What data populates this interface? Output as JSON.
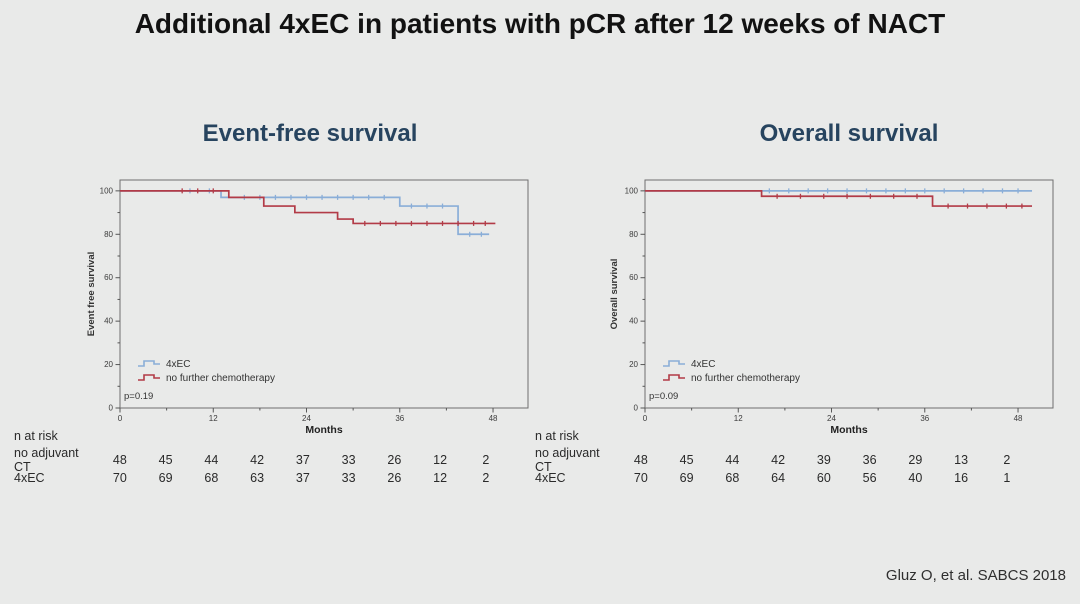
{
  "slide": {
    "title": "Additional 4xEC in patients with pCR after 12 weeks of NACT",
    "citation": "Gluz O, et al. SABCS 2018"
  },
  "colors": {
    "ec_blue": "#8aaed8",
    "no_ct_red": "#b23b47",
    "chart_title_navy": "#27445f",
    "background": "#e9eae9",
    "frame_gray": "#6f6f6f"
  },
  "chart_data": [
    {
      "type": "line",
      "subtype": "kaplan-meier-step",
      "title": "Event-free survival",
      "xlabel": "Months",
      "ylabel": "Event free survival",
      "annotation": "p=0.19",
      "legend_position": "lower left",
      "grid": false,
      "xlim": [
        0,
        52.5
      ],
      "ylim": [
        0,
        105
      ],
      "xticks": [
        0,
        12,
        24,
        36,
        48
      ],
      "yticks": [
        0,
        20,
        40,
        60,
        80,
        100
      ],
      "xticks_minor": [
        6,
        18,
        30,
        42
      ],
      "yticks_minor": [
        10,
        30,
        50,
        70,
        90
      ],
      "series": [
        {
          "name": "4xEC",
          "color": "#8aaed8",
          "step_points": [
            [
              0,
              100
            ],
            [
              13,
              100
            ],
            [
              13,
              97
            ],
            [
              36,
              97
            ],
            [
              36,
              93
            ],
            [
              43.5,
              93
            ],
            [
              43.5,
              80
            ],
            [
              47.5,
              80
            ]
          ],
          "censor_points": [
            [
              9,
              100
            ],
            [
              11.5,
              100
            ],
            [
              16,
              97
            ],
            [
              18,
              97
            ],
            [
              20,
              97
            ],
            [
              22,
              97
            ],
            [
              24,
              97
            ],
            [
              26,
              97
            ],
            [
              28,
              97
            ],
            [
              30,
              97
            ],
            [
              32,
              97
            ],
            [
              34,
              97
            ],
            [
              37.5,
              93
            ],
            [
              39.5,
              93
            ],
            [
              41.5,
              93
            ],
            [
              45,
              80
            ],
            [
              46.5,
              80
            ]
          ]
        },
        {
          "name": "no further chemotherapy",
          "color": "#b23b47",
          "step_points": [
            [
              0,
              100
            ],
            [
              14,
              100
            ],
            [
              14,
              97
            ],
            [
              18.5,
              97
            ],
            [
              18.5,
              93
            ],
            [
              22.5,
              93
            ],
            [
              22.5,
              90
            ],
            [
              28,
              90
            ],
            [
              28,
              87
            ],
            [
              30,
              87
            ],
            [
              30,
              85
            ],
            [
              48.3,
              85
            ]
          ],
          "censor_points": [
            [
              8,
              100
            ],
            [
              10,
              100
            ],
            [
              12,
              100
            ],
            [
              31.5,
              85
            ],
            [
              33.5,
              85
            ],
            [
              35.5,
              85
            ],
            [
              37.5,
              85
            ],
            [
              39.5,
              85
            ],
            [
              41.5,
              85
            ],
            [
              43.5,
              85
            ],
            [
              45.5,
              85
            ],
            [
              47,
              85
            ]
          ]
        }
      ]
    },
    {
      "type": "line",
      "subtype": "kaplan-meier-step",
      "title": "Overall survival",
      "xlabel": "Months",
      "ylabel": "Overall survival",
      "annotation": "p=0.09",
      "legend_position": "lower left",
      "grid": false,
      "xlim": [
        0,
        52.5
      ],
      "ylim": [
        0,
        105
      ],
      "xticks": [
        0,
        12,
        24,
        36,
        48
      ],
      "yticks": [
        0,
        20,
        40,
        60,
        80,
        100
      ],
      "xticks_minor": [
        6,
        18,
        30,
        42
      ],
      "yticks_minor": [
        10,
        30,
        50,
        70,
        90
      ],
      "series": [
        {
          "name": "4xEC",
          "color": "#8aaed8",
          "step_points": [
            [
              0,
              100
            ],
            [
              49.8,
              100
            ]
          ],
          "censor_points": [
            [
              16,
              100
            ],
            [
              18.5,
              100
            ],
            [
              21,
              100
            ],
            [
              23.5,
              100
            ],
            [
              26,
              100
            ],
            [
              28.5,
              100
            ],
            [
              31,
              100
            ],
            [
              33.5,
              100
            ],
            [
              36,
              100
            ],
            [
              38.5,
              100
            ],
            [
              41,
              100
            ],
            [
              43.5,
              100
            ],
            [
              46,
              100
            ],
            [
              48,
              100
            ]
          ]
        },
        {
          "name": "no further chemotherapy",
          "color": "#b23b47",
          "step_points": [
            [
              0,
              100
            ],
            [
              15,
              100
            ],
            [
              15,
              97.5
            ],
            [
              37,
              97.5
            ],
            [
              37,
              93
            ],
            [
              49.8,
              93
            ]
          ],
          "censor_points": [
            [
              17,
              97.5
            ],
            [
              20,
              97.5
            ],
            [
              23,
              97.5
            ],
            [
              26,
              97.5
            ],
            [
              29,
              97.5
            ],
            [
              32,
              97.5
            ],
            [
              35,
              97.5
            ],
            [
              39,
              93
            ],
            [
              41.5,
              93
            ],
            [
              44,
              93
            ],
            [
              46.5,
              93
            ],
            [
              48.5,
              93
            ]
          ]
        }
      ]
    }
  ],
  "risk_tables": [
    {
      "title": "n at risk",
      "rows": [
        {
          "label": "no adjuvant CT",
          "values": [
            48,
            45,
            44,
            42,
            37,
            33,
            26,
            12,
            2
          ]
        },
        {
          "label": "4xEC",
          "values": [
            70,
            69,
            68,
            63,
            37,
            33,
            26,
            12,
            2
          ]
        }
      ]
    },
    {
      "title": "n at risk",
      "rows": [
        {
          "label": "no adjuvant CT",
          "values": [
            48,
            45,
            44,
            42,
            39,
            36,
            29,
            13,
            2
          ]
        },
        {
          "label": "4xEC",
          "values": [
            70,
            69,
            68,
            64,
            60,
            56,
            40,
            16,
            1
          ]
        }
      ]
    }
  ]
}
